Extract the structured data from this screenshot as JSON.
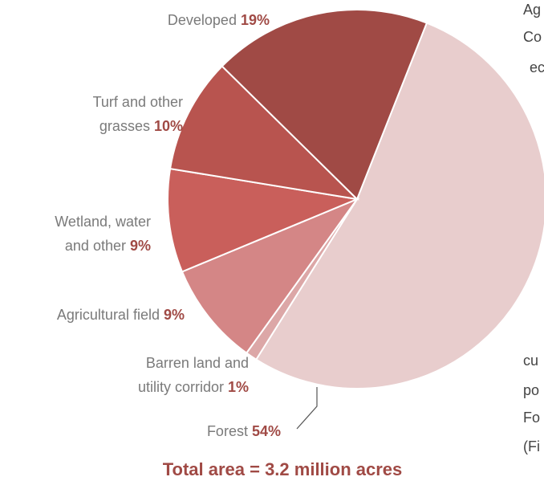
{
  "chart_data": {
    "type": "pie",
    "title": "Total area = 3.2 million acres",
    "categories": [
      "Forest",
      "Barren land and utility corridor",
      "Agricultural field",
      "Wetland, water and other",
      "Turf and other grasses",
      "Developed"
    ],
    "values": [
      54,
      1,
      9,
      9,
      10,
      19
    ],
    "value_labels": [
      "54%",
      "1%",
      "9%",
      "9%",
      "10%",
      "19%"
    ],
    "colors": [
      "#e8cdcd",
      "#dca7a7",
      "#d48686",
      "#c95f5b",
      "#b8544f",
      "#a04a45"
    ]
  },
  "background_text": [
    "Ag",
    "Co",
    "ec",
    "cu",
    "po",
    "Fo",
    "(Fi"
  ]
}
